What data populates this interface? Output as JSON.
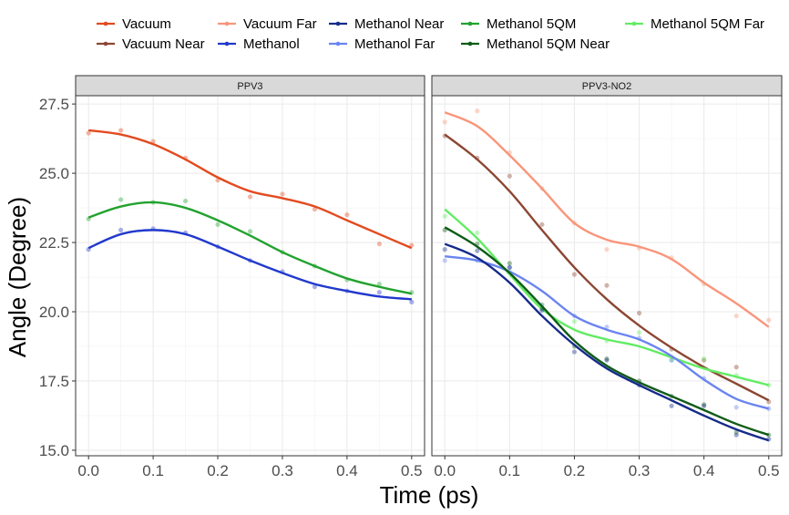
{
  "chart_data": {
    "type": "line",
    "xlabel": "Time (ps)",
    "ylabel": "Angle (Degree)",
    "xlim": [
      -0.02,
      0.52
    ],
    "ylim": [
      14.8,
      27.8
    ],
    "x_ticks": [
      "0.0",
      "0.1",
      "0.2",
      "0.3",
      "0.4",
      "0.5"
    ],
    "x_tick_values": [
      0,
      0.1,
      0.2,
      0.3,
      0.4,
      0.5
    ],
    "y_ticks": [
      "15.0",
      "17.5",
      "20.0",
      "22.5",
      "25.0",
      "27.5"
    ],
    "y_tick_values": [
      15.0,
      17.5,
      20.0,
      22.5,
      25.0,
      27.5
    ],
    "grid": true,
    "legend_position": "top",
    "legend": [
      {
        "name": "Vacuum",
        "color": "#e34a1f"
      },
      {
        "name": "Vacuum Near",
        "color": "#8c4632"
      },
      {
        "name": "Vacuum Far",
        "color": "#f9957a"
      },
      {
        "name": "Methanol",
        "color": "#2139cc"
      },
      {
        "name": "Methanol Near",
        "color": "#152a8a"
      },
      {
        "name": "Methanol Far",
        "color": "#6a84f0"
      },
      {
        "name": "Methanol 5QM",
        "color": "#22a22e"
      },
      {
        "name": "Methanol 5QM Near",
        "color": "#0f5c17"
      },
      {
        "name": "Methanol 5QM Far",
        "color": "#62ec62"
      }
    ],
    "panels": [
      {
        "title": "PPV3",
        "series": [
          {
            "name": "Vacuum",
            "color": "#e34a1f",
            "x": [
              0,
              0.05,
              0.1,
              0.15,
              0.2,
              0.25,
              0.3,
              0.35,
              0.4,
              0.45,
              0.5
            ],
            "points": [
              26.45,
              26.55,
              26.15,
              25.55,
              24.75,
              24.15,
              24.25,
              23.7,
              23.5,
              22.45,
              22.4
            ],
            "fit": [
              26.55,
              26.4,
              26.05,
              25.5,
              24.85,
              24.35,
              24.1,
              23.8,
              23.3,
              22.8,
              22.3
            ]
          },
          {
            "name": "Methanol 5QM",
            "color": "#22a22e",
            "x": [
              0,
              0.05,
              0.1,
              0.15,
              0.2,
              0.25,
              0.3,
              0.35,
              0.4,
              0.45,
              0.5
            ],
            "points": [
              23.35,
              24.05,
              23.95,
              24.0,
              23.15,
              22.9,
              22.15,
              21.65,
              21.15,
              21.0,
              20.7
            ],
            "fit": [
              23.4,
              23.8,
              23.95,
              23.75,
              23.3,
              22.75,
              22.15,
              21.65,
              21.2,
              20.9,
              20.65
            ]
          },
          {
            "name": "Methanol",
            "color": "#2139cc",
            "x": [
              0,
              0.05,
              0.1,
              0.15,
              0.2,
              0.25,
              0.3,
              0.35,
              0.4,
              0.45,
              0.5
            ],
            "points": [
              22.25,
              22.95,
              23.0,
              22.85,
              22.35,
              21.85,
              21.45,
              20.9,
              20.75,
              20.7,
              20.35
            ],
            "fit": [
              22.3,
              22.8,
              22.95,
              22.8,
              22.35,
              21.85,
              21.4,
              21.0,
              20.75,
              20.55,
              20.45
            ]
          }
        ]
      },
      {
        "title": "PPV3-NO2",
        "series": [
          {
            "name": "Vacuum Far",
            "color": "#f9957a",
            "x": [
              0,
              0.05,
              0.1,
              0.15,
              0.2,
              0.25,
              0.3,
              0.35,
              0.4,
              0.45,
              0.5
            ],
            "points": [
              26.85,
              27.25,
              25.75,
              24.45,
              23.2,
              22.25,
              22.3,
              21.95,
              21.0,
              19.85,
              19.7
            ],
            "fit": [
              27.2,
              26.7,
              25.65,
              24.45,
              23.2,
              22.6,
              22.35,
              21.9,
              21.05,
              20.3,
              19.45
            ]
          },
          {
            "name": "Vacuum Near",
            "color": "#8c4632",
            "x": [
              0,
              0.05,
              0.1,
              0.15,
              0.2,
              0.25,
              0.3,
              0.35,
              0.4,
              0.45,
              0.5
            ],
            "points": [
              26.35,
              25.55,
              24.9,
              23.15,
              21.35,
              20.95,
              19.95,
              18.65,
              18.25,
              18.0,
              16.75
            ],
            "fit": [
              26.4,
              25.5,
              24.35,
              22.95,
              21.6,
              20.45,
              19.5,
              18.7,
              18.0,
              17.4,
              16.8
            ]
          },
          {
            "name": "Methanol 5QM Far",
            "color": "#62ec62",
            "x": [
              0,
              0.05,
              0.1,
              0.15,
              0.2,
              0.25,
              0.3,
              0.35,
              0.4,
              0.45,
              0.5
            ],
            "points": [
              23.45,
              22.85,
              21.45,
              20.25,
              19.65,
              18.95,
              19.25,
              18.25,
              18.3,
              17.7,
              17.35
            ],
            "fit": [
              23.7,
              22.65,
              21.35,
              20.1,
              19.35,
              19.0,
              18.75,
              18.35,
              17.95,
              17.65,
              17.35
            ]
          },
          {
            "name": "Methanol Far",
            "color": "#6a84f0",
            "x": [
              0,
              0.05,
              0.1,
              0.15,
              0.2,
              0.25,
              0.3,
              0.35,
              0.4,
              0.45,
              0.5
            ],
            "points": [
              21.85,
              21.85,
              21.6,
              20.25,
              19.85,
              19.45,
              19.05,
              18.25,
              17.6,
              16.55,
              16.5
            ],
            "fit": [
              22.0,
              21.85,
              21.45,
              20.75,
              19.85,
              19.35,
              19.0,
              18.4,
              17.55,
              16.85,
              16.5
            ]
          },
          {
            "name": "Methanol 5QM Near",
            "color": "#0f5c17",
            "x": [
              0,
              0.05,
              0.1,
              0.15,
              0.2,
              0.25,
              0.3,
              0.35,
              0.4,
              0.45,
              0.5
            ],
            "points": [
              22.95,
              22.45,
              21.75,
              20.1,
              18.75,
              18.3,
              17.5,
              16.95,
              16.65,
              15.65,
              15.55
            ],
            "fit": [
              23.05,
              22.35,
              21.4,
              20.2,
              18.95,
              18.05,
              17.45,
              16.95,
              16.45,
              15.95,
              15.55
            ]
          },
          {
            "name": "Methanol Near",
            "color": "#152a8a",
            "x": [
              0,
              0.05,
              0.1,
              0.15,
              0.2,
              0.25,
              0.3,
              0.35,
              0.4,
              0.45,
              0.5
            ],
            "points": [
              22.25,
              22.2,
              21.6,
              20.05,
              18.55,
              18.25,
              17.35,
              16.6,
              16.6,
              15.55,
              15.4
            ],
            "fit": [
              22.45,
              21.95,
              21.05,
              19.85,
              18.8,
              17.95,
              17.35,
              16.8,
              16.25,
              15.75,
              15.35
            ]
          }
        ]
      }
    ]
  }
}
